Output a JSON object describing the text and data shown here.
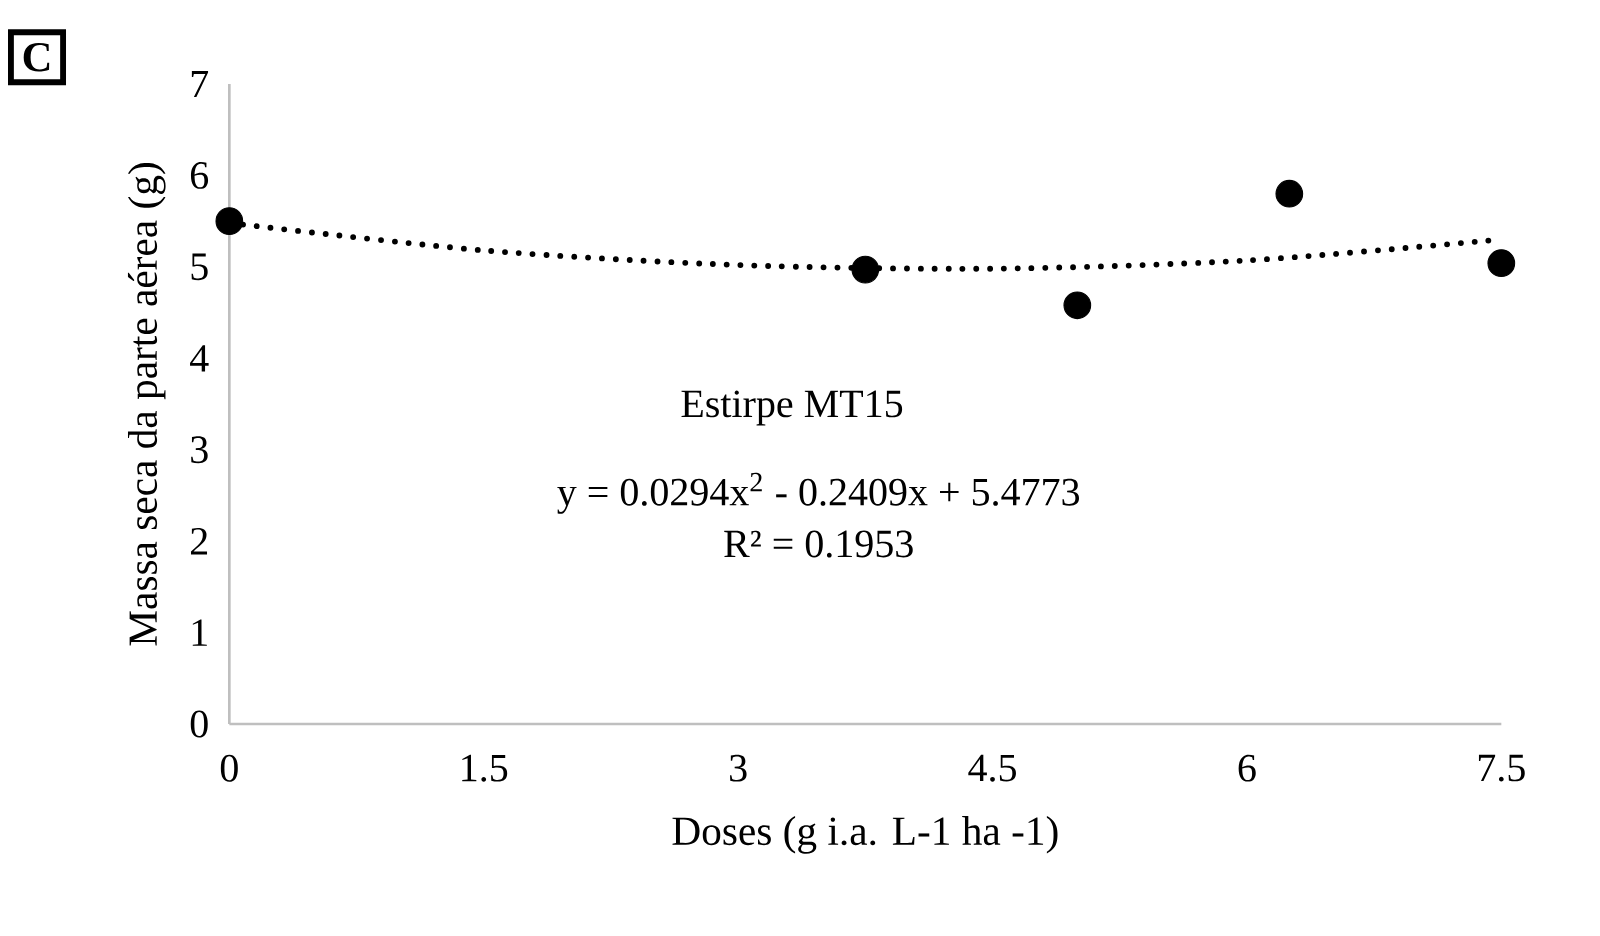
{
  "chart_data": {
    "type": "scatter",
    "xlabel": "Doses (g i.a. L-1 ha -1)",
    "ylabel": "Massa seca da parte aérea (g)",
    "annotations": [
      "C",
      "Estirpe MT15",
      "y = 0.0294x$^{2}$ - 0.2409x + 5.4773",
      "R² = 0.1953"
    ],
    "series": [
      {
        "type": "scatter",
        "color": "#000000",
        "marker": "circle",
        "x": [
          0,
          3.75,
          5,
          6.25,
          7.5
        ],
        "values": [
          5.5,
          4.97,
          4.58,
          5.8,
          5.04
        ]
      },
      {
        "type": "line",
        "color": "#000000",
        "line_style": "dotted",
        "marker": "none",
        "x": [
          0,
          1.5,
          3,
          4.5,
          6,
          7.5
        ],
        "values": [
          5.48,
          5.18,
          5.02,
          4.98,
          5.07,
          5.3
        ]
      }
    ],
    "xlim": [
      0,
      7.5
    ],
    "ylim": [
      0,
      7
    ],
    "xticks": [
      0,
      1.5,
      3,
      4.5,
      6,
      7.5
    ],
    "yticks": [
      0,
      1,
      2,
      3,
      4,
      5,
      6,
      7
    ],
    "grid": false
  }
}
